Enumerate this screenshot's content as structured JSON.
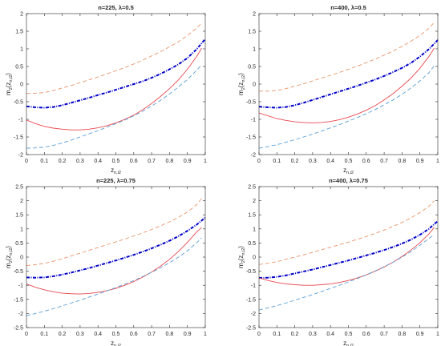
{
  "colors": {
    "axis": "#262626",
    "ci_upper": "#e8956b",
    "ci_lower": "#5a9fd6",
    "estimate": "#0000c8",
    "true_curve": "#e8484f"
  },
  "chart_data": [
    {
      "type": "line",
      "title": "n=225, λ=0.5",
      "ylabel_main": "m",
      "ylabel_sub": "2",
      "ylabel_arg": "(z",
      "ylabel_arg_sub": "n,i2",
      "ylabel_close": ")",
      "xlabel_main": "z",
      "xlabel_sub": "n,i2",
      "xlim": [
        0,
        1
      ],
      "ylim": [
        -2,
        2
      ],
      "xticks": [
        "0",
        "0.1",
        "0.2",
        "0.3",
        "0.4",
        "0.5",
        "0.6",
        "0.7",
        "0.8",
        "0.9",
        "1"
      ],
      "yticks": [
        "-2",
        "-1.5",
        "-1",
        "-0.5",
        "0",
        "0.5",
        "1",
        "1.5",
        "2"
      ],
      "series": [
        {
          "key": "upper",
          "style": "dashed",
          "x": [
            0,
            0.05,
            0.1,
            0.15,
            0.2,
            0.25,
            0.3,
            0.35,
            0.4,
            0.45,
            0.5,
            0.55,
            0.6,
            0.65,
            0.7,
            0.75,
            0.8,
            0.85,
            0.9,
            0.95,
            0.98
          ],
          "y": [
            -0.26,
            -0.26,
            -0.24,
            -0.18,
            -0.11,
            -0.04,
            0.04,
            0.12,
            0.2,
            0.29,
            0.38,
            0.47,
            0.57,
            0.68,
            0.8,
            0.92,
            1.06,
            1.2,
            1.38,
            1.58,
            1.73
          ]
        },
        {
          "key": "estimate",
          "style": "dashdot",
          "x": [
            0,
            0.05,
            0.1,
            0.15,
            0.2,
            0.25,
            0.3,
            0.35,
            0.4,
            0.45,
            0.5,
            0.55,
            0.6,
            0.65,
            0.7,
            0.75,
            0.8,
            0.85,
            0.9,
            0.95,
            1
          ],
          "y": [
            -0.63,
            -0.66,
            -0.67,
            -0.65,
            -0.6,
            -0.53,
            -0.46,
            -0.39,
            -0.31,
            -0.24,
            -0.16,
            -0.08,
            0.0,
            0.08,
            0.18,
            0.29,
            0.42,
            0.56,
            0.74,
            0.98,
            1.28
          ]
        },
        {
          "key": "truth",
          "style": "solid",
          "x": [
            0,
            0.05,
            0.1,
            0.15,
            0.2,
            0.25,
            0.3,
            0.35,
            0.4,
            0.45,
            0.5,
            0.55,
            0.6,
            0.65,
            0.7,
            0.75,
            0.8,
            0.85,
            0.9,
            0.95,
            0.98
          ],
          "y": [
            -1.02,
            -1.12,
            -1.2,
            -1.25,
            -1.28,
            -1.3,
            -1.3,
            -1.28,
            -1.24,
            -1.18,
            -1.1,
            -1.0,
            -0.88,
            -0.73,
            -0.55,
            -0.35,
            -0.13,
            0.12,
            0.42,
            0.77,
            1.02
          ]
        },
        {
          "key": "lower",
          "style": "dashed",
          "x": [
            0,
            0.05,
            0.1,
            0.15,
            0.2,
            0.25,
            0.3,
            0.35,
            0.4,
            0.45,
            0.5,
            0.55,
            0.6,
            0.65,
            0.7,
            0.75,
            0.8,
            0.85,
            0.9,
            0.95,
            0.98
          ],
          "y": [
            -1.82,
            -1.81,
            -1.79,
            -1.74,
            -1.67,
            -1.59,
            -1.5,
            -1.41,
            -1.32,
            -1.22,
            -1.12,
            -1.02,
            -0.9,
            -0.77,
            -0.62,
            -0.46,
            -0.28,
            -0.08,
            0.13,
            0.38,
            0.55
          ]
        }
      ]
    },
    {
      "type": "line",
      "title": "n=400, λ=0.5",
      "ylabel_main": "m",
      "ylabel_sub": "2",
      "ylabel_arg": "(z",
      "ylabel_arg_sub": "n,i2",
      "ylabel_close": ")",
      "xlabel_main": "z",
      "xlabel_sub": "n,i2",
      "xlim": [
        0,
        1
      ],
      "ylim": [
        -2,
        2
      ],
      "xticks": [
        "0",
        "0.1",
        "0.2",
        "0.3",
        "0.4",
        "0.5",
        "0.6",
        "0.7",
        "0.8",
        "0.9",
        "1"
      ],
      "yticks": [
        "-2",
        "-1.5",
        "-1",
        "-0.5",
        "0",
        "0.5",
        "1",
        "1.5",
        "2"
      ],
      "series": [
        {
          "key": "upper",
          "style": "dashed",
          "x": [
            0,
            0.05,
            0.1,
            0.15,
            0.2,
            0.25,
            0.3,
            0.35,
            0.4,
            0.45,
            0.5,
            0.55,
            0.6,
            0.65,
            0.7,
            0.75,
            0.8,
            0.85,
            0.9,
            0.95,
            0.98
          ],
          "y": [
            -0.2,
            -0.2,
            -0.18,
            -0.13,
            -0.06,
            0.01,
            0.09,
            0.17,
            0.25,
            0.33,
            0.42,
            0.51,
            0.61,
            0.71,
            0.82,
            0.94,
            1.07,
            1.22,
            1.38,
            1.58,
            1.75
          ]
        },
        {
          "key": "estimate",
          "style": "dashdot",
          "x": [
            0,
            0.05,
            0.1,
            0.15,
            0.2,
            0.25,
            0.3,
            0.35,
            0.4,
            0.45,
            0.5,
            0.55,
            0.6,
            0.65,
            0.7,
            0.75,
            0.8,
            0.85,
            0.9,
            0.95,
            1
          ],
          "y": [
            -0.64,
            -0.66,
            -0.67,
            -0.65,
            -0.6,
            -0.53,
            -0.45,
            -0.37,
            -0.29,
            -0.21,
            -0.13,
            -0.05,
            0.04,
            0.13,
            0.23,
            0.34,
            0.46,
            0.6,
            0.78,
            0.99,
            1.25
          ]
        },
        {
          "key": "truth",
          "style": "solid",
          "x": [
            0,
            0.05,
            0.1,
            0.15,
            0.2,
            0.25,
            0.3,
            0.35,
            0.4,
            0.45,
            0.5,
            0.55,
            0.6,
            0.65,
            0.7,
            0.75,
            0.8,
            0.85,
            0.9,
            0.95,
            0.98
          ],
          "y": [
            -0.82,
            -0.9,
            -0.98,
            -1.03,
            -1.07,
            -1.09,
            -1.1,
            -1.09,
            -1.06,
            -1.01,
            -0.94,
            -0.85,
            -0.74,
            -0.61,
            -0.45,
            -0.27,
            -0.06,
            0.17,
            0.45,
            0.78,
            1.02
          ]
        },
        {
          "key": "lower",
          "style": "dashed",
          "x": [
            0,
            0.05,
            0.1,
            0.15,
            0.2,
            0.25,
            0.3,
            0.35,
            0.4,
            0.45,
            0.5,
            0.55,
            0.6,
            0.65,
            0.7,
            0.75,
            0.8,
            0.85,
            0.9,
            0.95,
            0.98
          ],
          "y": [
            -1.82,
            -1.77,
            -1.72,
            -1.65,
            -1.58,
            -1.5,
            -1.42,
            -1.33,
            -1.24,
            -1.15,
            -1.05,
            -0.95,
            -0.84,
            -0.72,
            -0.59,
            -0.45,
            -0.29,
            -0.11,
            0.09,
            0.32,
            0.52
          ]
        }
      ]
    },
    {
      "type": "line",
      "title": "n=225, λ=0.75",
      "ylabel_main": "m",
      "ylabel_sub": "2",
      "ylabel_arg": "(z",
      "ylabel_arg_sub": "n,i2",
      "ylabel_close": ")",
      "xlabel_main": "z",
      "xlabel_sub": "n,i2",
      "xlim": [
        0,
        1
      ],
      "ylim": [
        -2.5,
        2.5
      ],
      "xticks": [
        "0",
        "0.1",
        "0.2",
        "0.3",
        "0.4",
        "0.5",
        "0.6",
        "0.7",
        "0.8",
        "0.9",
        "1"
      ],
      "yticks": [
        "-2.5",
        "-2",
        "-1.5",
        "-1",
        "-0.5",
        "0",
        "0.5",
        "1",
        "1.5",
        "2",
        "2.5"
      ],
      "series": [
        {
          "key": "upper",
          "style": "dashed",
          "x": [
            0,
            0.05,
            0.1,
            0.15,
            0.2,
            0.25,
            0.3,
            0.35,
            0.4,
            0.45,
            0.5,
            0.55,
            0.6,
            0.65,
            0.7,
            0.75,
            0.8,
            0.85,
            0.9,
            0.95,
            0.98
          ],
          "y": [
            -0.3,
            -0.27,
            -0.22,
            -0.15,
            -0.06,
            0.04,
            0.14,
            0.24,
            0.34,
            0.44,
            0.54,
            0.64,
            0.75,
            0.86,
            0.98,
            1.11,
            1.25,
            1.41,
            1.6,
            1.85,
            2.08
          ]
        },
        {
          "key": "estimate",
          "style": "dashdot",
          "x": [
            0,
            0.05,
            0.1,
            0.15,
            0.2,
            0.25,
            0.3,
            0.35,
            0.4,
            0.45,
            0.5,
            0.55,
            0.6,
            0.65,
            0.7,
            0.75,
            0.8,
            0.85,
            0.9,
            0.95,
            1
          ],
          "y": [
            -0.72,
            -0.73,
            -0.72,
            -0.68,
            -0.62,
            -0.55,
            -0.47,
            -0.39,
            -0.3,
            -0.21,
            -0.12,
            -0.02,
            0.08,
            0.19,
            0.31,
            0.44,
            0.58,
            0.74,
            0.93,
            1.14,
            1.4
          ]
        },
        {
          "key": "truth",
          "style": "solid",
          "x": [
            0,
            0.05,
            0.1,
            0.15,
            0.2,
            0.25,
            0.3,
            0.35,
            0.4,
            0.45,
            0.5,
            0.55,
            0.6,
            0.65,
            0.7,
            0.75,
            0.8,
            0.85,
            0.9,
            0.95,
            0.98
          ],
          "y": [
            -0.95,
            -1.07,
            -1.16,
            -1.23,
            -1.28,
            -1.3,
            -1.31,
            -1.29,
            -1.25,
            -1.19,
            -1.11,
            -1.0,
            -0.87,
            -0.71,
            -0.53,
            -0.32,
            -0.08,
            0.2,
            0.52,
            0.88,
            1.05
          ]
        },
        {
          "key": "lower",
          "style": "dashed",
          "x": [
            0,
            0.05,
            0.1,
            0.15,
            0.2,
            0.25,
            0.3,
            0.35,
            0.4,
            0.45,
            0.5,
            0.55,
            0.6,
            0.65,
            0.7,
            0.75,
            0.8,
            0.85,
            0.9,
            0.95,
            0.98
          ],
          "y": [
            -2.08,
            -2.0,
            -1.92,
            -1.83,
            -1.73,
            -1.63,
            -1.53,
            -1.42,
            -1.31,
            -1.2,
            -1.08,
            -0.96,
            -0.83,
            -0.69,
            -0.54,
            -0.38,
            -0.2,
            0.0,
            0.22,
            0.5,
            0.68
          ]
        }
      ]
    },
    {
      "type": "line",
      "title": "n=400, λ=0.75",
      "ylabel_main": "m",
      "ylabel_sub": "2",
      "ylabel_arg": "(z",
      "ylabel_arg_sub": "n,i2",
      "ylabel_close": ")",
      "xlabel_main": "z",
      "xlabel_sub": "n,i2",
      "xlim": [
        0,
        1
      ],
      "ylim": [
        -2.5,
        2.5
      ],
      "xticks": [
        "0",
        "0.1",
        "0.2",
        "0.3",
        "0.4",
        "0.5",
        "0.6",
        "0.7",
        "0.8",
        "0.9",
        "1"
      ],
      "yticks": [
        "-2.5",
        "-2",
        "-1.5",
        "-1",
        "-0.5",
        "0",
        "0.5",
        "1",
        "1.5",
        "2",
        "2.5"
      ],
      "series": [
        {
          "key": "upper",
          "style": "dashed",
          "x": [
            0,
            0.05,
            0.1,
            0.15,
            0.2,
            0.25,
            0.3,
            0.35,
            0.4,
            0.45,
            0.5,
            0.55,
            0.6,
            0.65,
            0.7,
            0.75,
            0.8,
            0.85,
            0.9,
            0.95,
            0.98
          ],
          "y": [
            -0.26,
            -0.22,
            -0.16,
            -0.08,
            0.0,
            0.08,
            0.17,
            0.26,
            0.35,
            0.44,
            0.53,
            0.63,
            0.73,
            0.84,
            0.96,
            1.09,
            1.23,
            1.39,
            1.58,
            1.8,
            2.0
          ]
        },
        {
          "key": "estimate",
          "style": "dashdot",
          "x": [
            0,
            0.05,
            0.1,
            0.15,
            0.2,
            0.25,
            0.3,
            0.35,
            0.4,
            0.45,
            0.5,
            0.55,
            0.6,
            0.65,
            0.7,
            0.75,
            0.8,
            0.85,
            0.9,
            0.95,
            1
          ],
          "y": [
            -0.74,
            -0.73,
            -0.7,
            -0.65,
            -0.58,
            -0.51,
            -0.44,
            -0.36,
            -0.28,
            -0.2,
            -0.12,
            -0.03,
            0.06,
            0.15,
            0.25,
            0.36,
            0.48,
            0.62,
            0.79,
            1.0,
            1.28
          ]
        },
        {
          "key": "truth",
          "style": "solid",
          "x": [
            0,
            0.05,
            0.1,
            0.15,
            0.2,
            0.25,
            0.3,
            0.35,
            0.4,
            0.45,
            0.5,
            0.55,
            0.6,
            0.65,
            0.7,
            0.75,
            0.8,
            0.85,
            0.9,
            0.95,
            0.98
          ],
          "y": [
            -0.74,
            -0.83,
            -0.9,
            -0.95,
            -0.98,
            -1.0,
            -1.0,
            -0.98,
            -0.95,
            -0.9,
            -0.83,
            -0.74,
            -0.63,
            -0.5,
            -0.35,
            -0.18,
            0.02,
            0.25,
            0.51,
            0.82,
            1.05
          ]
        },
        {
          "key": "lower",
          "style": "dashed",
          "x": [
            0,
            0.05,
            0.1,
            0.15,
            0.2,
            0.25,
            0.3,
            0.35,
            0.4,
            0.45,
            0.5,
            0.55,
            0.6,
            0.65,
            0.7,
            0.75,
            0.8,
            0.85,
            0.9,
            0.95,
            0.98
          ],
          "y": [
            -1.88,
            -1.8,
            -1.72,
            -1.63,
            -1.53,
            -1.43,
            -1.33,
            -1.22,
            -1.11,
            -1.0,
            -0.88,
            -0.76,
            -0.63,
            -0.49,
            -0.34,
            -0.18,
            0.0,
            0.2,
            0.42,
            0.66,
            0.8
          ]
        }
      ]
    }
  ]
}
